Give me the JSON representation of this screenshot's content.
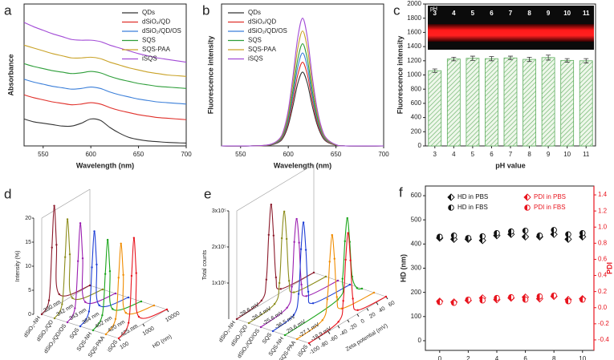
{
  "chart_data": [
    {
      "type": "line",
      "label": "a",
      "xlabel": "Wavelength  (nm)",
      "ylabel": "Absorbance",
      "legend": "upper right",
      "xlim": [
        530,
        700
      ],
      "xticks": [
        550,
        600,
        650,
        700
      ],
      "ylim": [
        0,
        10
      ],
      "x": [
        530,
        540,
        550,
        560,
        570,
        580,
        590,
        600,
        610,
        620,
        630,
        640,
        650,
        660,
        670,
        680,
        690,
        700
      ],
      "series": [
        {
          "name": "QDs",
          "color": "#333333",
          "values": [
            1.9,
            1.7,
            1.6,
            1.5,
            1.4,
            1.4,
            1.6,
            1.9,
            1.8,
            1.3,
            0.9,
            0.6,
            0.45,
            0.35,
            0.3,
            0.25,
            0.22,
            0.2
          ]
        },
        {
          "name": "dSiO₂/QD",
          "color": "#e0302a",
          "values": [
            3.6,
            3.4,
            3.25,
            3.1,
            3.0,
            2.9,
            2.95,
            3.05,
            2.95,
            2.7,
            2.5,
            2.35,
            2.2,
            2.1,
            2.0,
            1.95,
            1.9,
            1.85
          ]
        },
        {
          "name": "dSiO₂/QD/OS",
          "color": "#3b7fd9",
          "values": [
            4.7,
            4.5,
            4.35,
            4.2,
            4.1,
            4.0,
            4.05,
            4.15,
            4.05,
            3.8,
            3.6,
            3.45,
            3.3,
            3.2,
            3.1,
            3.05,
            3.0,
            2.95
          ]
        },
        {
          "name": "SQS",
          "color": "#2e9e3a",
          "values": [
            5.8,
            5.6,
            5.45,
            5.3,
            5.2,
            5.1,
            5.15,
            5.25,
            5.15,
            4.9,
            4.7,
            4.55,
            4.4,
            4.3,
            4.2,
            4.15,
            4.1,
            4.05
          ]
        },
        {
          "name": "SQS-PAA",
          "color": "#c9a227",
          "values": [
            7.1,
            6.9,
            6.7,
            6.5,
            6.35,
            6.2,
            6.2,
            6.25,
            6.15,
            5.9,
            5.7,
            5.5,
            5.35,
            5.2,
            5.1,
            5.0,
            4.95,
            4.9
          ]
        },
        {
          "name": "iSQS",
          "color": "#a24bd6",
          "values": [
            8.7,
            8.4,
            8.15,
            7.9,
            7.7,
            7.5,
            7.45,
            7.45,
            7.35,
            7.1,
            6.9,
            6.7,
            6.5,
            6.35,
            6.2,
            6.1,
            6.0,
            5.9
          ]
        }
      ]
    },
    {
      "type": "line",
      "label": "b",
      "xlabel": "Wavelength  (nm)",
      "ylabel": "Fluorescence intensity",
      "legend": "upper left",
      "xlim": [
        530,
        700
      ],
      "xticks": [
        550,
        600,
        650,
        700
      ],
      "ylim": [
        0,
        10
      ],
      "x": [
        530,
        560,
        580,
        590,
        595,
        600,
        605,
        610,
        615,
        620,
        625,
        630,
        635,
        640,
        650,
        660,
        700
      ],
      "series": [
        {
          "name": "QDs",
          "color": "#333333",
          "values": [
            0,
            0,
            0.05,
            0.26,
            0.62,
            1.46,
            2.86,
            4.42,
            5.2,
            4.42,
            2.86,
            1.56,
            0.73,
            0.31,
            0.05,
            0,
            0
          ]
        },
        {
          "name": "dSiO₂/QD",
          "color": "#e0302a",
          "values": [
            0,
            0,
            0.06,
            0.3,
            0.71,
            1.65,
            3.25,
            5.02,
            5.9,
            5.02,
            3.25,
            1.77,
            0.83,
            0.35,
            0.06,
            0,
            0
          ]
        },
        {
          "name": "dSiO₂/QD/OS",
          "color": "#3b7fd9",
          "values": [
            0,
            0,
            0.07,
            0.33,
            0.79,
            1.83,
            3.6,
            5.57,
            6.55,
            5.57,
            3.6,
            1.97,
            0.92,
            0.39,
            0.07,
            0,
            0
          ]
        },
        {
          "name": "SQS",
          "color": "#2e9e3a",
          "values": [
            0,
            0,
            0.07,
            0.36,
            0.86,
            2.02,
            3.96,
            6.12,
            7.2,
            6.12,
            3.96,
            2.16,
            1.01,
            0.43,
            0.07,
            0,
            0
          ]
        },
        {
          "name": "SQS-PAA",
          "color": "#c9a227",
          "values": [
            0,
            0,
            0.08,
            0.41,
            0.97,
            2.27,
            4.46,
            6.89,
            8.1,
            6.89,
            4.46,
            2.43,
            1.13,
            0.49,
            0.08,
            0,
            0
          ]
        },
        {
          "name": "iSQS",
          "color": "#a24bd6",
          "values": [
            0,
            0,
            0.09,
            0.45,
            1.08,
            2.52,
            4.95,
            7.65,
            9.0,
            7.65,
            4.95,
            2.7,
            1.26,
            0.54,
            0.09,
            0,
            0
          ]
        }
      ]
    },
    {
      "type": "bar",
      "label": "c",
      "xlabel": "pH value",
      "ylabel": "Fluorescence intensity",
      "inset_label": "pH",
      "color": "#5fae5f",
      "categories": [
        "3",
        "4",
        "5",
        "6",
        "7",
        "8",
        "9",
        "10",
        "11"
      ],
      "values": [
        1060,
        1225,
        1235,
        1230,
        1240,
        1220,
        1245,
        1205,
        1200
      ],
      "errors": [
        25,
        25,
        30,
        30,
        25,
        30,
        35,
        25,
        30
      ],
      "ylim": [
        0,
        2000
      ],
      "yticks": [
        0,
        200,
        400,
        600,
        800,
        1000,
        1200,
        1400,
        1600,
        1800,
        2000
      ]
    },
    {
      "type": "waterfall",
      "label": "d",
      "xlabel": "HD (nm)",
      "ylabel": "Intensity (%)",
      "xlog": true,
      "xlim": [
        100,
        10000
      ],
      "xticks": [
        100,
        1000,
        10000
      ],
      "ylim": [
        0,
        20
      ],
      "yticks": [
        0,
        5,
        10,
        15,
        20
      ],
      "series": [
        {
          "name": "dSiO₂-NH",
          "annotation": "330 nm",
          "color": "#8b1a2b",
          "x": [
            100,
            200,
            265,
            330,
            410,
            530,
            10000
          ],
          "values": [
            0,
            2,
            12.6,
            21,
            12.6,
            2,
            0
          ]
        },
        {
          "name": "dSiO₂/QD",
          "annotation": "342 nm",
          "color": "#8c8c1a",
          "x": [
            100,
            205,
            275,
            342,
            430,
            550,
            10000
          ],
          "values": [
            0,
            2,
            11.4,
            19,
            11.4,
            2,
            0
          ]
        },
        {
          "name": "dSiO₂/QD/OS",
          "annotation": "343 nm",
          "color": "#9b1fb0",
          "x": [
            100,
            205,
            275,
            343,
            430,
            550,
            10000
          ],
          "values": [
            0,
            2,
            11.4,
            19,
            11.4,
            2,
            0
          ]
        },
        {
          "name": "SQS",
          "annotation": "384 nm",
          "color": "#1f3fd6",
          "x": [
            100,
            230,
            305,
            384,
            480,
            615,
            10000
          ],
          "values": [
            0,
            2,
            10.8,
            18,
            10.8,
            2,
            0
          ]
        },
        {
          "name": "SQS-NH",
          "annotation": "402 nm",
          "color": "#1aa51a",
          "x": [
            100,
            240,
            320,
            402,
            500,
            645,
            10000
          ],
          "values": [
            0,
            2,
            10.2,
            17,
            10.2,
            2,
            0
          ]
        },
        {
          "name": "SQS-PAA",
          "annotation": "420 nm",
          "color": "#f08c00",
          "x": [
            100,
            250,
            335,
            420,
            525,
            670,
            10000
          ],
          "values": [
            0,
            2,
            10.2,
            17,
            10.2,
            2,
            0
          ]
        },
        {
          "name": "iSQS",
          "annotation": "425 nm",
          "color": "#e8141e",
          "x": [
            100,
            255,
            340,
            425,
            530,
            680,
            10000
          ],
          "values": [
            0,
            2,
            11.4,
            19,
            11.4,
            2,
            0
          ]
        }
      ]
    },
    {
      "type": "waterfall",
      "label": "e",
      "xlabel": "Zeta potential (mV)",
      "ylabel": "Total counts",
      "xlog": false,
      "xlim": [
        -100,
        60
      ],
      "xticks": [
        -100,
        -80,
        -60,
        -40,
        -20,
        0,
        20,
        40,
        60
      ],
      "ylim": [
        0,
        300000
      ],
      "yticks": [
        {
          "value": 100000,
          "label": "1x10⁵"
        },
        {
          "value": 200000,
          "label": "2x10⁵"
        },
        {
          "value": 300000,
          "label": "3x10⁵"
        }
      ],
      "series": [
        {
          "name": "dSiO₂-NH",
          "annotation": "-28.6 mV",
          "color": "#8b1a2b",
          "x": [
            -100,
            -48.6,
            -38.6,
            -33.6,
            -28.6,
            -23.6,
            -18.6,
            -8.6,
            60
          ],
          "values": [
            0,
            10000,
            60000,
            180000,
            260000,
            170000,
            50000,
            10000,
            0
          ]
        },
        {
          "name": "dSiO₂/QD",
          "annotation": "-26.4 mV",
          "color": "#8c8c1a",
          "x": [
            -100,
            -46.4,
            -36.4,
            -31.4,
            -26.4,
            -21.4,
            -16.4,
            -6.4,
            60
          ],
          "values": [
            0,
            10000,
            60000,
            180000,
            250000,
            170000,
            50000,
            10000,
            0
          ]
        },
        {
          "name": "dSiO₂/QD/OS",
          "annotation": "-25.6 mV",
          "color": "#9b1fb0",
          "x": [
            -100,
            -45.6,
            -35.6,
            -30.6,
            -25.6,
            -20.6,
            -15.6,
            -5.6,
            60
          ],
          "values": [
            0,
            10000,
            60000,
            180000,
            240000,
            170000,
            50000,
            10000,
            0
          ]
        },
        {
          "name": "SQS",
          "annotation": "-36.5 mV",
          "color": "#1f3fd6",
          "x": [
            -100,
            -56.5,
            -46.5,
            -41.5,
            -36.5,
            -31.5,
            -26.5,
            -16.5,
            60
          ],
          "values": [
            0,
            10000,
            60000,
            180000,
            250000,
            170000,
            50000,
            10000,
            0
          ]
        },
        {
          "name": "SQS-NH",
          "annotation": "29.6 mV",
          "color": "#1aa51a",
          "x": [
            -100,
            9.6,
            19.6,
            24.6,
            29.6,
            34.6,
            39.6,
            49.6,
            60
          ],
          "values": [
            0,
            10000,
            60000,
            160000,
            220000,
            150000,
            50000,
            10000,
            0
          ]
        },
        {
          "name": "SQS-PAA",
          "annotation": "-27.1 mV",
          "color": "#f08c00",
          "x": [
            -100,
            -47.1,
            -37.1,
            -32.1,
            -27.1,
            -22.1,
            -17.1,
            -7.1,
            60
          ],
          "values": [
            0,
            10000,
            60000,
            160000,
            230000,
            160000,
            50000,
            10000,
            0
          ]
        },
        {
          "name": "iSQS",
          "annotation": "-18.9 mV",
          "color": "#e8141e",
          "x": [
            -100,
            -38.9,
            -28.9,
            -23.9,
            -18.9,
            -13.9,
            -8.9,
            1.1,
            60
          ],
          "values": [
            0,
            10000,
            60000,
            170000,
            240000,
            160000,
            50000,
            10000,
            0
          ]
        }
      ]
    },
    {
      "type": "scatter",
      "label": "f",
      "xlabel": "Time (day)",
      "ylabel": "HD (nm)",
      "y2label": "PDI",
      "xlim": [
        -1,
        10.8
      ],
      "xticks": [
        0,
        2,
        4,
        6,
        8,
        10
      ],
      "ylim": [
        -40,
        640
      ],
      "yticks": [
        0,
        100,
        200,
        300,
        400,
        500,
        600
      ],
      "y2lim": [
        -0.53,
        1.51
      ],
      "y2ticks": [
        -0.4,
        -0.2,
        {
          "value": 0,
          "label": "0.0"
        },
        0.2,
        0.4,
        0.6,
        0.8,
        {
          "value": 1,
          "label": "1.0"
        },
        1.2,
        1.4
      ],
      "x": [
        0,
        1,
        2,
        3,
        4,
        5,
        6,
        7,
        8,
        9,
        10
      ],
      "series": [
        {
          "name": "HD in PBS",
          "color": "#111111",
          "marker": "diamond",
          "values": [
            425,
            420,
            420,
            415,
            435,
            440,
            430,
            430,
            440,
            420,
            430
          ]
        },
        {
          "name": "HD in FBS",
          "color": "#111111",
          "marker": "circle",
          "values": [
            430,
            435,
            425,
            432,
            445,
            452,
            455,
            435,
            458,
            440,
            445
          ]
        },
        {
          "name": "PDI in PBS",
          "color": "#e8141e",
          "marker": "diamond",
          "axis": "y2",
          "values": [
            0.08,
            0.07,
            0.09,
            0.12,
            0.1,
            0.12,
            0.13,
            0.11,
            0.14,
            0.1,
            0.11
          ]
        },
        {
          "name": "PDI in FBS",
          "color": "#e8141e",
          "marker": "circle",
          "axis": "y2",
          "values": [
            0.07,
            0.06,
            0.1,
            0.09,
            0.12,
            0.13,
            0.1,
            0.14,
            0.15,
            0.08,
            0.1
          ]
        }
      ]
    }
  ]
}
